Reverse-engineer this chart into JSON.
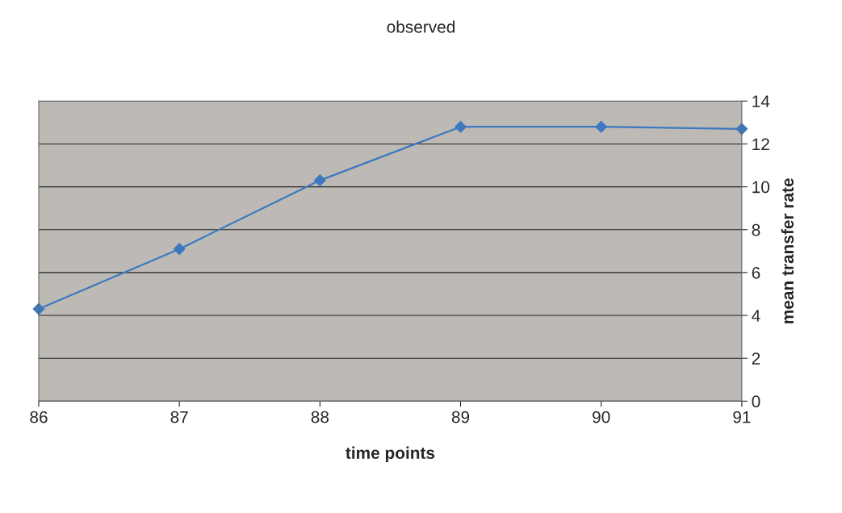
{
  "chart_data": {
    "type": "line",
    "title": "observed",
    "xlabel": "time points",
    "ylabel": "mean transfer rate",
    "x": [
      86,
      87,
      88,
      89,
      90,
      91
    ],
    "values": [
      4.3,
      7.1,
      10.3,
      12.8,
      12.8,
      12.7
    ],
    "color": "#3c78c0",
    "marker": "diamond",
    "line_style": "solid",
    "xlim": [
      86,
      91
    ],
    "xticks": [
      86,
      87,
      88,
      89,
      90,
      91
    ],
    "ylim": [
      0,
      14
    ],
    "yticks": [
      0,
      2,
      4,
      6,
      8,
      10,
      12,
      14
    ],
    "grid": "y"
  }
}
